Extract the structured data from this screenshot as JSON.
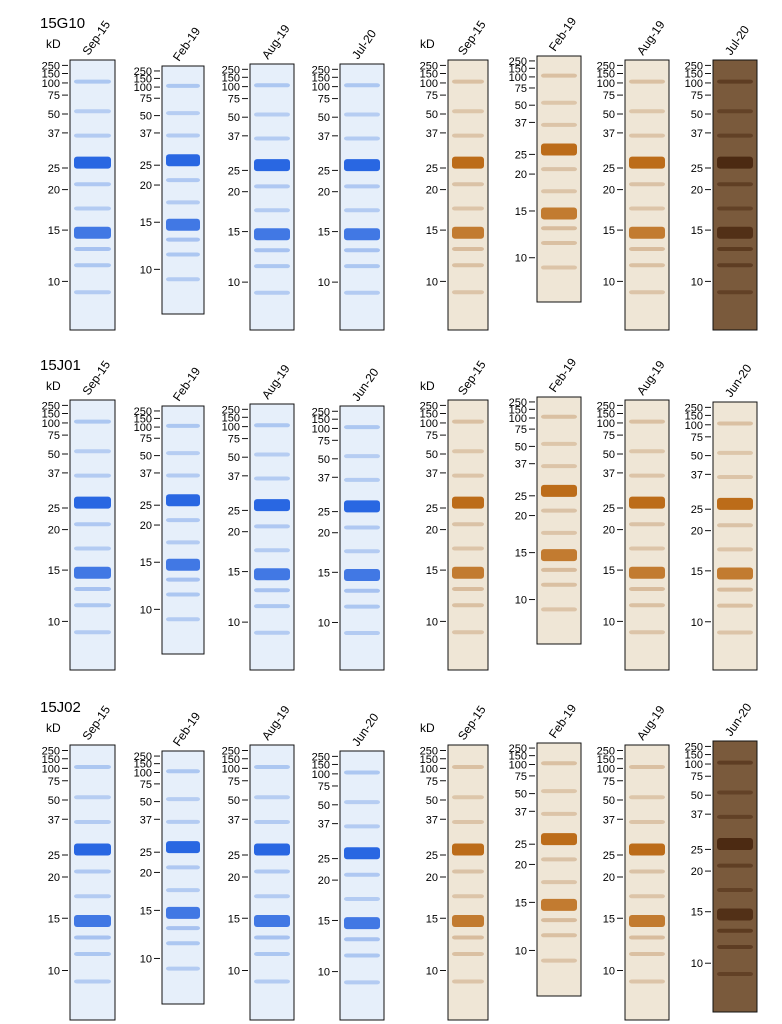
{
  "figure": {
    "marker_unit": "kD",
    "marker_labels": [
      "250",
      "150",
      "100",
      "75",
      "50",
      "37",
      "25",
      "20",
      "15",
      "10"
    ],
    "stains": {
      "coomassie": {
        "bg": "#e6effa",
        "band": "#1f5fe0",
        "band_soft": "#7fa7ea"
      },
      "silver": {
        "bg": "#efe6d6",
        "band": "#b8650f",
        "band_soft": "#c9a27a",
        "dark_bg": "#7a5a3c",
        "dark_band": "#4a2810"
      }
    },
    "rows": [
      {
        "sample": "15G10",
        "lanes": [
          {
            "stain": "coomassie",
            "date": "Sep-15",
            "dark": false
          },
          {
            "stain": "coomassie",
            "date": "Feb-19",
            "dark": false
          },
          {
            "stain": "coomassie",
            "date": "Aug-19",
            "dark": false
          },
          {
            "stain": "coomassie",
            "date": "Jul-20",
            "dark": false
          },
          {
            "stain": "silver",
            "date": "Sep-15",
            "dark": false
          },
          {
            "stain": "silver",
            "date": "Feb-19",
            "dark": false
          },
          {
            "stain": "silver",
            "date": "Aug-19",
            "dark": false
          },
          {
            "stain": "silver",
            "date": "Jul-20",
            "dark": true
          }
        ]
      },
      {
        "sample": "15J01",
        "lanes": [
          {
            "stain": "coomassie",
            "date": "Sep-15",
            "dark": false
          },
          {
            "stain": "coomassie",
            "date": "Feb-19",
            "dark": false
          },
          {
            "stain": "coomassie",
            "date": "Aug-19",
            "dark": false
          },
          {
            "stain": "coomassie",
            "date": "Jun-20",
            "dark": false
          },
          {
            "stain": "silver",
            "date": "Sep-15",
            "dark": false
          },
          {
            "stain": "silver",
            "date": "Feb-19",
            "dark": false
          },
          {
            "stain": "silver",
            "date": "Aug-19",
            "dark": false
          },
          {
            "stain": "silver",
            "date": "Jun-20",
            "dark": false
          }
        ]
      },
      {
        "sample": "15J02",
        "lanes": [
          {
            "stain": "coomassie",
            "date": "Sep-15",
            "dark": false
          },
          {
            "stain": "coomassie",
            "date": "Feb-19",
            "dark": false
          },
          {
            "stain": "coomassie",
            "date": "Aug-19",
            "dark": false
          },
          {
            "stain": "coomassie",
            "date": "Jun-20",
            "dark": false
          },
          {
            "stain": "silver",
            "date": "Sep-15",
            "dark": false
          },
          {
            "stain": "silver",
            "date": "Feb-19",
            "dark": false
          },
          {
            "stain": "silver",
            "date": "Aug-19",
            "dark": false
          },
          {
            "stain": "silver",
            "date": "Jun-20",
            "dark": true
          }
        ]
      }
    ]
  }
}
